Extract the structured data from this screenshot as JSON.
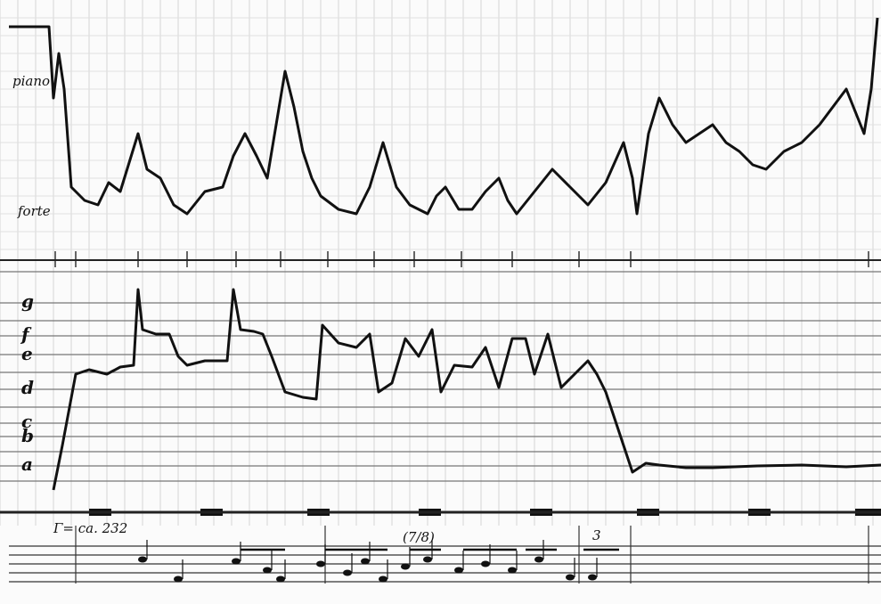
{
  "dynamics": {
    "labels": [
      "piano",
      "forte"
    ]
  },
  "pitch": {
    "labels": [
      "g",
      "f",
      "e",
      "d",
      "c",
      "b",
      "a"
    ]
  },
  "notation": {
    "tempo": "Γ= ca. 232",
    "meter": "(7/8)",
    "tuplet": "3"
  }
}
